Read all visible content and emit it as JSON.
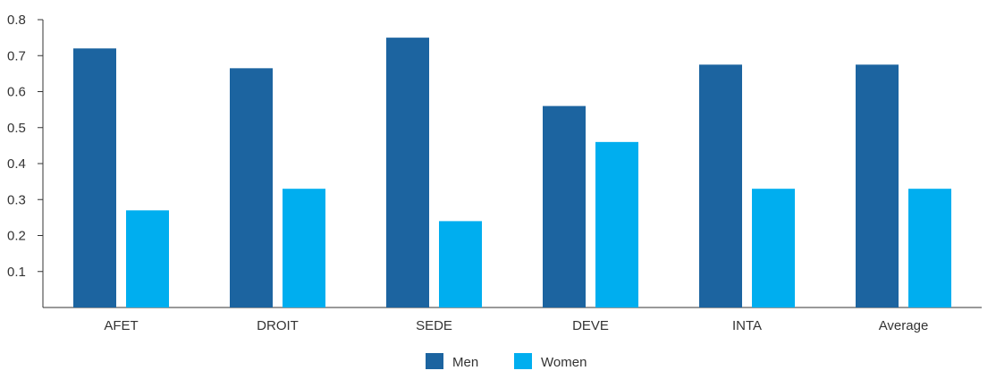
{
  "chart_data": {
    "type": "bar",
    "title": "",
    "xlabel": "",
    "ylabel": "",
    "categories": [
      "AFET",
      "DROIT",
      "SEDE",
      "DEVE",
      "INTA",
      "Average"
    ],
    "series": [
      {
        "name": "Men",
        "color": "#1C64A0",
        "values": [
          0.72,
          0.665,
          0.75,
          0.56,
          0.675,
          0.675
        ]
      },
      {
        "name": "Women",
        "color": "#00AEEF",
        "values": [
          0.27,
          0.33,
          0.24,
          0.46,
          0.33,
          0.33
        ]
      }
    ],
    "ylim": [
      0,
      0.8
    ],
    "yticks": [
      "0.1",
      "0.2",
      "0.3",
      "0.4",
      "0.5",
      "0.6",
      "0.7",
      "0.8"
    ],
    "grid": false,
    "legend_position": "bottom-center"
  }
}
